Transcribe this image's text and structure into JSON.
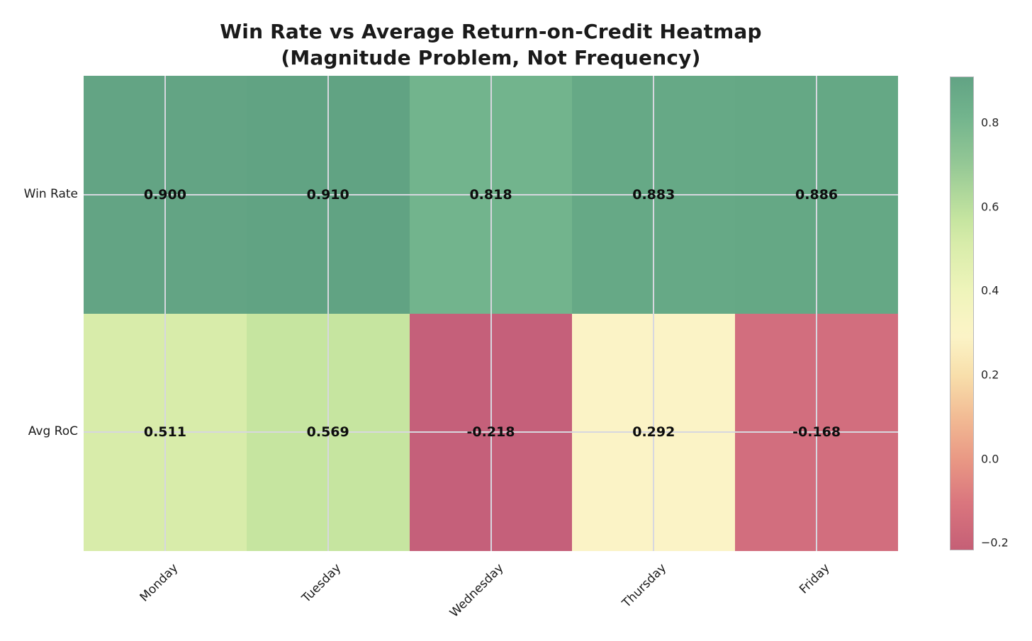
{
  "title": {
    "line1": "Win Rate vs Average Return-on-Credit Heatmap",
    "line2": "(Magnitude Problem, Not Frequency)"
  },
  "chart_data": {
    "type": "heatmap",
    "title": "Win Rate vs Average Return-on-Credit Heatmap (Magnitude Problem, Not Frequency)",
    "columns": [
      "Monday",
      "Tuesday",
      "Wednesday",
      "Thursday",
      "Friday"
    ],
    "rows": [
      "Win Rate",
      "Avg RoC"
    ],
    "values": [
      [
        0.9,
        0.91,
        0.818,
        0.883,
        0.886
      ],
      [
        0.511,
        0.569,
        -0.218,
        0.292,
        -0.168
      ]
    ],
    "value_labels": [
      [
        "0.900",
        "0.910",
        "0.818",
        "0.883",
        "0.886"
      ],
      [
        "0.511",
        "0.569",
        "-0.218",
        "0.292",
        "-0.168"
      ]
    ],
    "cell_colors": [
      [
        "#63a484",
        "#61a383",
        "#72b48d",
        "#66a986",
        "#65a885"
      ],
      [
        "#d8ecaa",
        "#c6e5a0",
        "#c5607a",
        "#fbf3c6",
        "#d26e7e"
      ]
    ],
    "annotation_text_color": "#0d0d0d",
    "grid_color": "#d7d7df",
    "colormap": "red-yellow-green diverging (muted)",
    "colorbar": {
      "min": -0.218,
      "max": 0.91,
      "ticks": [
        "0.8",
        "0.6",
        "0.4",
        "0.2",
        "0.0",
        "−0.2"
      ],
      "tick_values": [
        0.8,
        0.6,
        0.4,
        0.2,
        0.0,
        -0.2
      ],
      "gradient_stops": [
        {
          "pos": 0,
          "color": "#62a384"
        },
        {
          "pos": 8.2,
          "color": "#72b48d"
        },
        {
          "pos": 18,
          "color": "#93c795"
        },
        {
          "pos": 30.2,
          "color": "#c6e5a0"
        },
        {
          "pos": 35.4,
          "color": "#d8ecaa"
        },
        {
          "pos": 45,
          "color": "#eef4ba"
        },
        {
          "pos": 52,
          "color": "#f9f4c4"
        },
        {
          "pos": 55,
          "color": "#fbf3c6"
        },
        {
          "pos": 63,
          "color": "#f8dfab"
        },
        {
          "pos": 72,
          "color": "#f2bb94"
        },
        {
          "pos": 81,
          "color": "#e99884"
        },
        {
          "pos": 90,
          "color": "#da767e"
        },
        {
          "pos": 100,
          "color": "#c55f76"
        }
      ]
    },
    "legend": "colorbar on right",
    "grid": "light gridlines drawn over cells at row/column centers"
  }
}
